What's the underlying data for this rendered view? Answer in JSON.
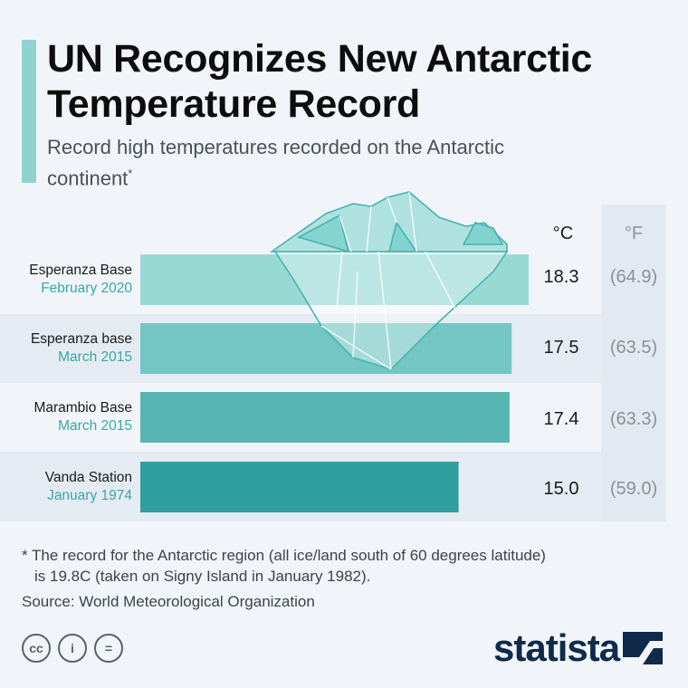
{
  "header": {
    "title": "UN Recognizes New Antarctic Temperature Record",
    "subtitle": "Record high temperatures recorded on the Antarctic continent",
    "subtitle_mark": "*"
  },
  "columns": {
    "celsius": "°C",
    "fahrenheit": "°F"
  },
  "chart_data": {
    "type": "bar",
    "orientation": "horizontal",
    "categories": [
      "Esperanza Base",
      "Esperanza base",
      "Marambio Base",
      "Vanda Station"
    ],
    "dates": [
      "February 2020",
      "March 2015",
      "March 2015",
      "January 1974"
    ],
    "values": [
      18.3,
      17.5,
      17.4,
      15.0
    ],
    "values_label": [
      "18.3",
      "17.5",
      "17.4",
      "15.0"
    ],
    "values_f": [
      "(64.9)",
      "(63.5)",
      "(63.3)",
      "(59.0)"
    ],
    "unit": "°C",
    "colors": [
      "#99d9d4",
      "#73c6c3",
      "#57b6b4",
      "#2f9f9e"
    ],
    "title": "UN Recognizes New Antarctic Temperature Record"
  },
  "footer": {
    "footnote_line1": "* The record for the Antarctic region (all ice/land south of 60 degrees latitude)",
    "footnote_line2": "is 19.8C (taken on Signy Island in January 1982).",
    "source": "Source: World Meteorological Organization",
    "brand": "statista",
    "license_icons": [
      "cc",
      "i",
      "="
    ]
  },
  "iceberg_color": "#77cfcb"
}
